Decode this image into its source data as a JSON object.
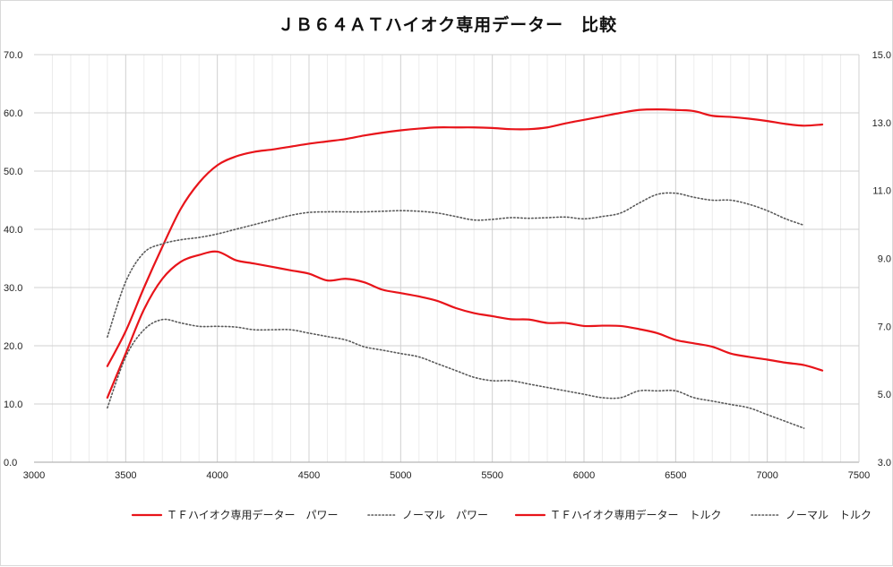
{
  "chart_data": {
    "type": "line",
    "title": "ＪＢ６４ＡＴハイオク専用データー　比較",
    "xlim": [
      3000,
      7500
    ],
    "x_ticks": [
      "3000",
      "3500",
      "4000",
      "4500",
      "5000",
      "5500",
      "6000",
      "6500",
      "7000",
      "7500"
    ],
    "y_left_lim": [
      0,
      70
    ],
    "y_left_ticks": [
      "0.0",
      "10.0",
      "20.0",
      "30.0",
      "40.0",
      "50.0",
      "60.0",
      "70.0"
    ],
    "y_right_lim": [
      3,
      15
    ],
    "y_right_ticks": [
      "3.0",
      "5.0",
      "7.0",
      "9.0",
      "11.0",
      "13.0",
      "15.0"
    ],
    "grid": "on",
    "legend_position": "bottom",
    "series": [
      {
        "name": "ＴＦハイオク専用データー　パワー",
        "axis": "left",
        "style": "solid",
        "color": "#e8141a",
        "points": [
          [
            3400,
            16.5
          ],
          [
            3500,
            22.5
          ],
          [
            3600,
            30
          ],
          [
            3700,
            37
          ],
          [
            3800,
            43.5
          ],
          [
            3900,
            48
          ],
          [
            4000,
            51
          ],
          [
            4100,
            52.5
          ],
          [
            4200,
            53.3
          ],
          [
            4300,
            53.7
          ],
          [
            4400,
            54.2
          ],
          [
            4500,
            54.7
          ],
          [
            4600,
            55.1
          ],
          [
            4700,
            55.5
          ],
          [
            4800,
            56.1
          ],
          [
            4900,
            56.6
          ],
          [
            5000,
            57
          ],
          [
            5100,
            57.3
          ],
          [
            5200,
            57.5
          ],
          [
            5300,
            57.5
          ],
          [
            5400,
            57.5
          ],
          [
            5500,
            57.4
          ],
          [
            5600,
            57.2
          ],
          [
            5700,
            57.2
          ],
          [
            5800,
            57.5
          ],
          [
            5900,
            58.2
          ],
          [
            6000,
            58.8
          ],
          [
            6100,
            59.4
          ],
          [
            6200,
            60
          ],
          [
            6300,
            60.5
          ],
          [
            6400,
            60.6
          ],
          [
            6500,
            60.5
          ],
          [
            6600,
            60.3
          ],
          [
            6700,
            59.5
          ],
          [
            6800,
            59.3
          ],
          [
            6900,
            59
          ],
          [
            7000,
            58.6
          ],
          [
            7100,
            58.1
          ],
          [
            7200,
            57.8
          ],
          [
            7300,
            58
          ]
        ]
      },
      {
        "name": "ノーマル　パワー",
        "axis": "left",
        "style": "dotted",
        "color": "#595959",
        "points": [
          [
            3400,
            21.5
          ],
          [
            3500,
            31
          ],
          [
            3600,
            36
          ],
          [
            3700,
            37.5
          ],
          [
            3800,
            38.2
          ],
          [
            3900,
            38.6
          ],
          [
            4000,
            39.2
          ],
          [
            4100,
            40
          ],
          [
            4200,
            40.8
          ],
          [
            4300,
            41.6
          ],
          [
            4400,
            42.4
          ],
          [
            4500,
            42.9
          ],
          [
            4600,
            43
          ],
          [
            4700,
            43
          ],
          [
            4800,
            43
          ],
          [
            4900,
            43.1
          ],
          [
            5000,
            43.2
          ],
          [
            5100,
            43.1
          ],
          [
            5200,
            42.8
          ],
          [
            5300,
            42.2
          ],
          [
            5400,
            41.6
          ],
          [
            5500,
            41.7
          ],
          [
            5600,
            42
          ],
          [
            5700,
            41.9
          ],
          [
            5800,
            42
          ],
          [
            5900,
            42.1
          ],
          [
            6000,
            41.8
          ],
          [
            6100,
            42.2
          ],
          [
            6200,
            42.8
          ],
          [
            6300,
            44.5
          ],
          [
            6400,
            46
          ],
          [
            6500,
            46.2
          ],
          [
            6600,
            45.5
          ],
          [
            6700,
            45
          ],
          [
            6800,
            45
          ],
          [
            6900,
            44.3
          ],
          [
            7000,
            43.2
          ],
          [
            7100,
            41.8
          ],
          [
            7200,
            40.7
          ]
        ]
      },
      {
        "name": "ＴＦハイオク専用データー　トルク",
        "axis": "right",
        "style": "solid",
        "color": "#e8141a",
        "points": [
          [
            3400,
            4.9
          ],
          [
            3500,
            6.2
          ],
          [
            3600,
            7.5
          ],
          [
            3700,
            8.4
          ],
          [
            3800,
            8.9
          ],
          [
            3900,
            9.1
          ],
          [
            4000,
            9.2
          ],
          [
            4100,
            8.95
          ],
          [
            4200,
            8.85
          ],
          [
            4300,
            8.75
          ],
          [
            4400,
            8.65
          ],
          [
            4500,
            8.55
          ],
          [
            4600,
            8.35
          ],
          [
            4700,
            8.4
          ],
          [
            4800,
            8.3
          ],
          [
            4900,
            8.08
          ],
          [
            5000,
            7.98
          ],
          [
            5100,
            7.88
          ],
          [
            5200,
            7.75
          ],
          [
            5300,
            7.54
          ],
          [
            5400,
            7.39
          ],
          [
            5500,
            7.3
          ],
          [
            5600,
            7.21
          ],
          [
            5700,
            7.2
          ],
          [
            5800,
            7.1
          ],
          [
            5900,
            7.1
          ],
          [
            6000,
            7.01
          ],
          [
            6100,
            7.02
          ],
          [
            6200,
            7.01
          ],
          [
            6300,
            6.92
          ],
          [
            6400,
            6.8
          ],
          [
            6500,
            6.6
          ],
          [
            6600,
            6.5
          ],
          [
            6700,
            6.4
          ],
          [
            6800,
            6.2
          ],
          [
            6900,
            6.1
          ],
          [
            7000,
            6.02
          ],
          [
            7100,
            5.93
          ],
          [
            7200,
            5.86
          ],
          [
            7300,
            5.7
          ]
        ]
      },
      {
        "name": "ノーマル　トルク",
        "axis": "right",
        "style": "dotted",
        "color": "#595959",
        "points": [
          [
            3400,
            4.6
          ],
          [
            3500,
            6.1
          ],
          [
            3600,
            6.9
          ],
          [
            3700,
            7.2
          ],
          [
            3800,
            7.1
          ],
          [
            3900,
            7
          ],
          [
            4000,
            7
          ],
          [
            4100,
            6.98
          ],
          [
            4200,
            6.9
          ],
          [
            4300,
            6.9
          ],
          [
            4400,
            6.9
          ],
          [
            4500,
            6.8
          ],
          [
            4600,
            6.7
          ],
          [
            4700,
            6.6
          ],
          [
            4800,
            6.4
          ],
          [
            4900,
            6.3
          ],
          [
            5000,
            6.2
          ],
          [
            5100,
            6.1
          ],
          [
            5200,
            5.9
          ],
          [
            5300,
            5.7
          ],
          [
            5400,
            5.5
          ],
          [
            5500,
            5.4
          ],
          [
            5600,
            5.4
          ],
          [
            5700,
            5.3
          ],
          [
            5800,
            5.2
          ],
          [
            5900,
            5.1
          ],
          [
            6000,
            5
          ],
          [
            6100,
            4.9
          ],
          [
            6200,
            4.9
          ],
          [
            6300,
            5.1
          ],
          [
            6400,
            5.1
          ],
          [
            6500,
            5.1
          ],
          [
            6600,
            4.9
          ],
          [
            6700,
            4.8
          ],
          [
            6800,
            4.7
          ],
          [
            6900,
            4.6
          ],
          [
            7000,
            4.4
          ],
          [
            7100,
            4.2
          ],
          [
            7200,
            4
          ]
        ]
      }
    ]
  }
}
